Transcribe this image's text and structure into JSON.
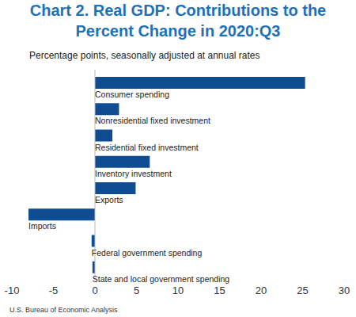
{
  "chart_data": {
    "type": "bar",
    "title": "Chart 2. Real GDP: Contributions to the Percent Change in 2020:Q3",
    "subtitle": "Percentage points, seasonally adjusted at annual rates",
    "source": "U.S. Bureau of Economic Analysis",
    "orientation": "horizontal",
    "categories": [
      "Consumer spending",
      "Nonresidential fixed investment",
      "Residential fixed investment",
      "Inventory investment",
      "Exports",
      "Imports",
      "Federal government spending",
      "State and local government spending"
    ],
    "values": [
      25.3,
      2.9,
      2.1,
      6.6,
      4.9,
      -8.0,
      -0.4,
      -0.3
    ],
    "color": "#0f4c92",
    "xlim": [
      -10,
      30
    ],
    "xticks": [
      -10,
      -5,
      0,
      5,
      10,
      15,
      20,
      25,
      30
    ],
    "grid": false,
    "tick_labels": "x"
  }
}
